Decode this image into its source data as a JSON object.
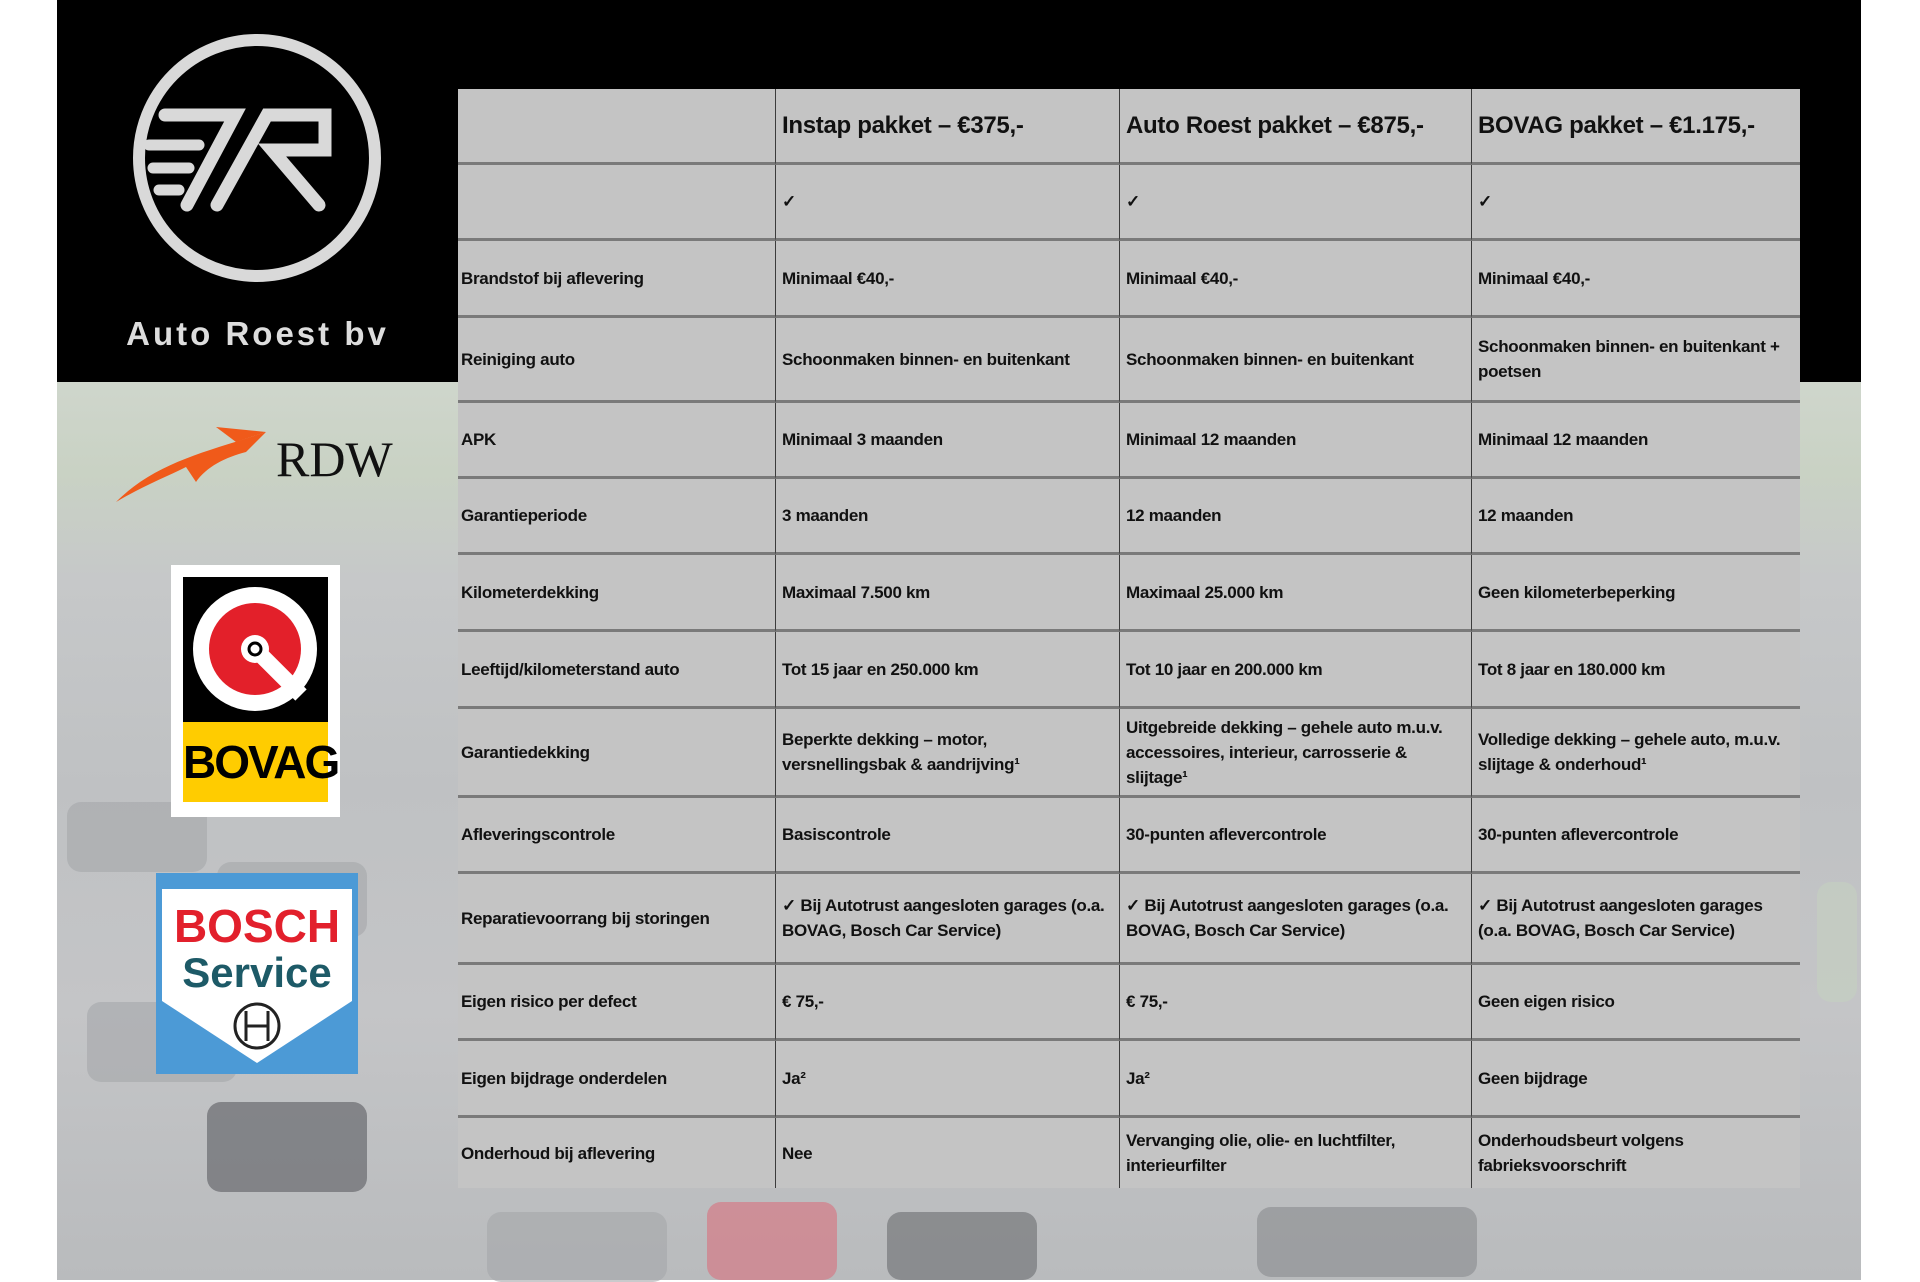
{
  "brand": {
    "name": "Auto Roest bv",
    "logo_icon": "auto-roest-7r-logo"
  },
  "partner_logos": [
    {
      "name": "RDW",
      "icon": "rdw-logo"
    },
    {
      "name": "BOVAG",
      "icon": "bovag-logo"
    },
    {
      "name": "BOSCH Service",
      "icon": "bosch-service-logo",
      "line1": "BOSCH",
      "line2": "Service"
    }
  ],
  "table": {
    "headers": [
      "",
      "Instap pakket – €375,-",
      "Auto Roest pakket – €875,-",
      "BOVAG pakket – €1.175,-"
    ],
    "rows": [
      [
        "",
        "✓",
        "✓",
        "✓"
      ],
      [
        "Brandstof bij aflevering",
        "Minimaal €40,-",
        "Minimaal €40,-",
        "Minimaal €40,-"
      ],
      [
        "Reiniging auto",
        "Schoonmaken binnen- en buitenkant",
        "Schoonmaken binnen- en buitenkant",
        "Schoonmaken binnen- en buitenkant + poetsen"
      ],
      [
        "APK",
        "Minimaal 3 maanden",
        "Minimaal 12 maanden",
        "Minimaal 12 maanden"
      ],
      [
        "Garantieperiode",
        "3 maanden",
        "12 maanden",
        "12 maanden"
      ],
      [
        "Kilometerdekking",
        "Maximaal 7.500 km",
        "Maximaal 25.000 km",
        "Geen kilometerbeperking"
      ],
      [
        "Leeftijd/kilometerstand auto",
        "Tot 15 jaar en 250.000 km",
        "Tot 10 jaar en 200.000 km",
        "Tot 8 jaar en 180.000 km"
      ],
      [
        "Garantiedekking",
        "Beperkte dekking – motor, versnellingsbak & aandrijving¹",
        "Uitgebreide dekking – gehele auto m.u.v. accessoires, interieur, carrosserie & slijtage¹",
        "Volledige dekking – gehele auto, m.u.v. slijtage & onderhoud¹"
      ],
      [
        "Afleveringscontrole",
        "Basiscontrole",
        "30-punten aflevercontrole",
        "30-punten aflevercontrole"
      ],
      [
        "Reparatievoorrang bij storingen",
        "✓ Bij Autotrust aangesloten garages (o.a. BOVAG, Bosch Car Service)",
        "✓ Bij Autotrust aangesloten garages (o.a. BOVAG, Bosch Car Service)",
        "✓ Bij Autotrust aangesloten garages (o.a. BOVAG, Bosch Car Service)"
      ],
      [
        "Eigen risico per defect",
        "€ 75,-",
        "€ 75,-",
        "Geen eigen risico"
      ],
      [
        "Eigen bijdrage onderdelen",
        "Ja²",
        "Ja²",
        "Geen bijdrage"
      ],
      [
        "Onderhoud bij aflevering",
        "Nee",
        "Vervanging olie, olie- en luchtfilter, interieurfilter",
        "Onderhoudsbeurt volgens fabrieksvoorschrift"
      ]
    ]
  },
  "colors": {
    "table_bg": "#c4c4c4",
    "header_bg": "#000000",
    "rdw_orange": "#f05a1a",
    "bovag_yellow": "#ffcc00",
    "bovag_red": "#e3202a",
    "bosch_red": "#e2202c",
    "bosch_teal": "#1d5a67",
    "bosch_blue": "#4c9ad6"
  }
}
